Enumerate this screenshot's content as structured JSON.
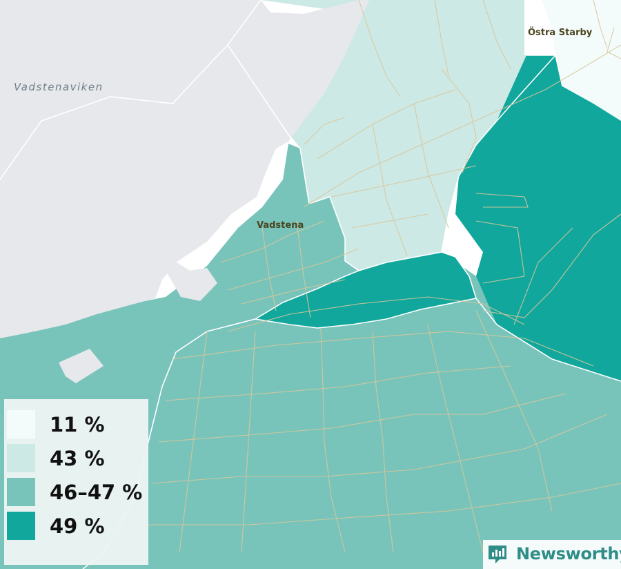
{
  "map": {
    "places": [
      {
        "id": "vadstena",
        "name": "Vadstena"
      },
      {
        "id": "ostra-starby",
        "name": "Östra Starby"
      }
    ],
    "water": [
      {
        "id": "vadstenaviken",
        "name": "Vadstenaviken"
      }
    ]
  },
  "legend": {
    "items": [
      {
        "label": "11 %",
        "color": "#f3fcfb"
      },
      {
        "label": "43 %",
        "color": "#cde9e6"
      },
      {
        "label": "46–47 %",
        "color": "#78c4bb"
      },
      {
        "label": "49 %",
        "color": "#12a79c"
      }
    ]
  },
  "brand": {
    "name": "Newsworthy",
    "color": "#2f8d87"
  },
  "colors": {
    "water": "#e6e8ec",
    "roads": "#d8c79a",
    "borders": "#ffffff"
  }
}
